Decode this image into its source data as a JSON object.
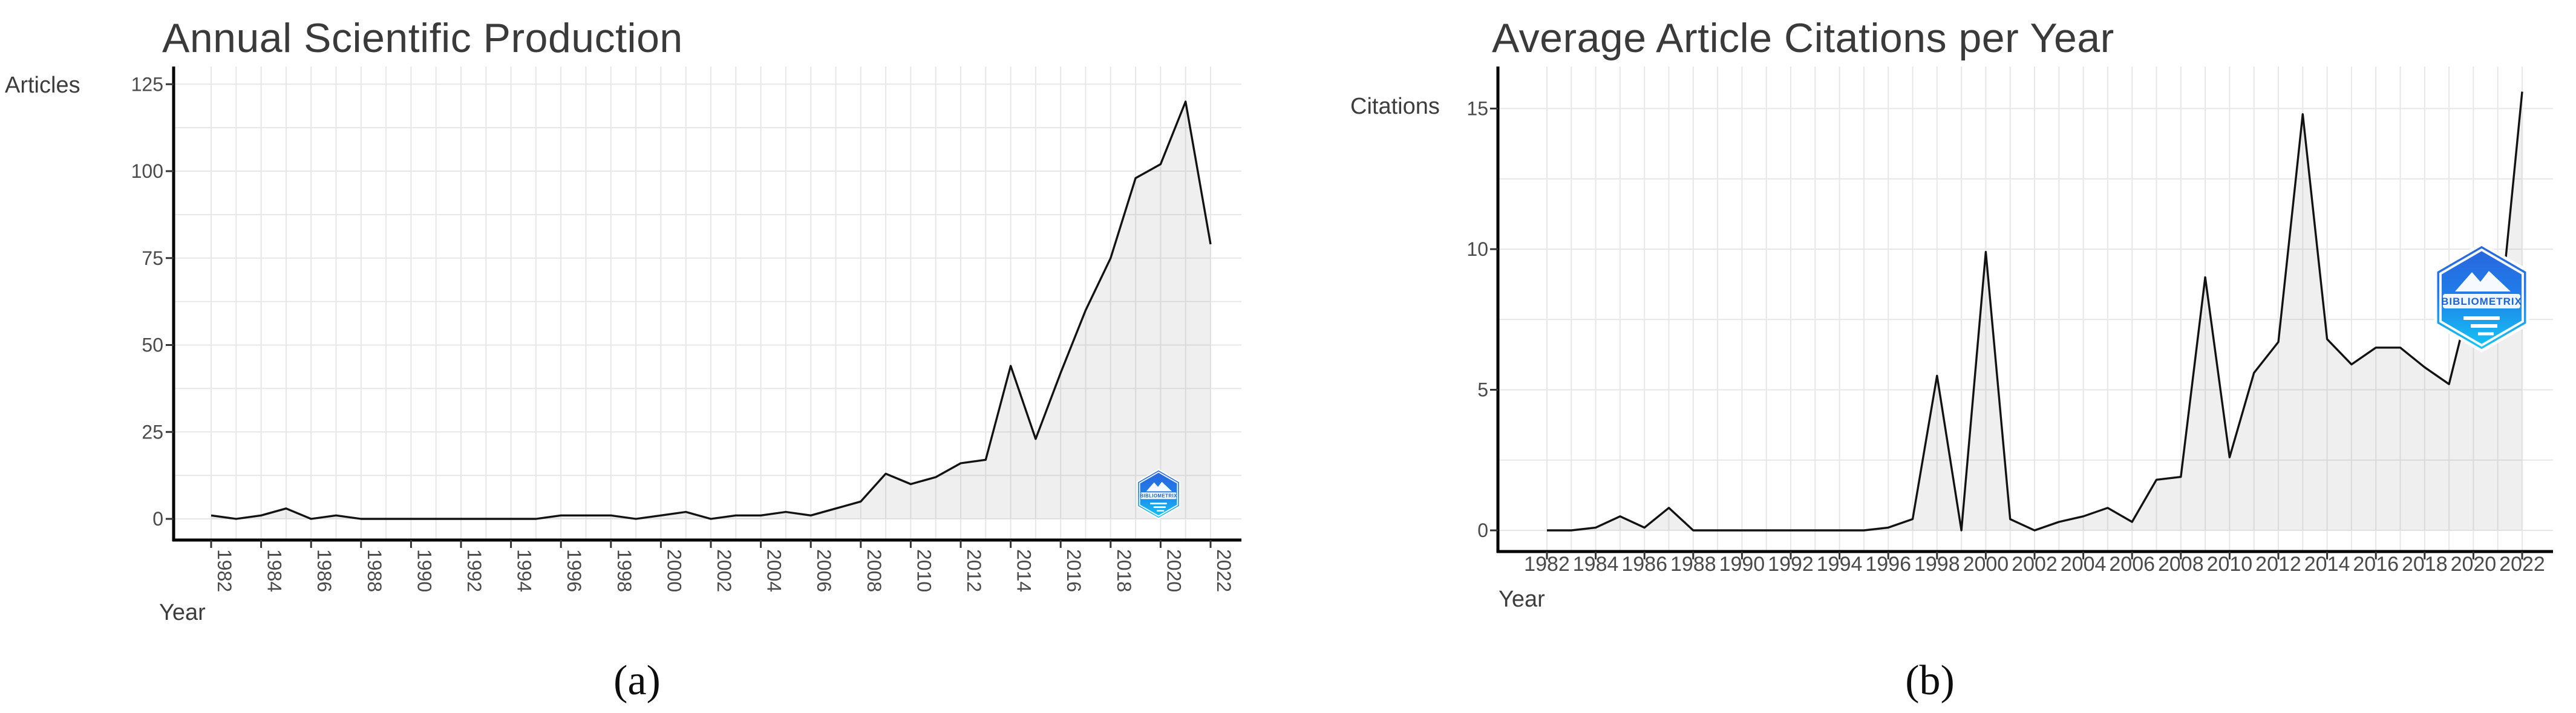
{
  "page": {
    "background": "#ffffff",
    "captions": [
      "(a)",
      "(b)"
    ]
  },
  "logo": {
    "name": "bibliometrix-logo",
    "text": "BIBLIOMETRIX",
    "gradient_top": "#2b63dd",
    "gradient_mid": "#1f7ce8",
    "gradient_bottom": "#15c8f5"
  },
  "colors": {
    "line": "#121212",
    "area_fill": "rgba(140,140,140,0.14)",
    "grid": "#e7e7e7",
    "axis": "#000000",
    "tick_text": "#4a4a4a",
    "title_text": "#3a3a3a"
  },
  "chart_data": [
    {
      "type": "area",
      "title": "Annual Scientific Production",
      "xlabel": "Year",
      "ylabel": "Articles",
      "x": [
        1982,
        1983,
        1984,
        1985,
        1986,
        1987,
        1988,
        1989,
        1990,
        1991,
        1992,
        1993,
        1994,
        1995,
        1996,
        1997,
        1998,
        1999,
        2000,
        2001,
        2002,
        2003,
        2004,
        2005,
        2006,
        2007,
        2008,
        2009,
        2010,
        2011,
        2012,
        2013,
        2014,
        2015,
        2016,
        2017,
        2018,
        2019,
        2020,
        2021,
        2022
      ],
      "values": [
        1,
        0,
        1,
        3,
        0,
        1,
        0,
        0,
        0,
        0,
        0,
        0,
        0,
        0,
        1,
        1,
        1,
        0,
        1,
        2,
        0,
        1,
        1,
        2,
        1,
        3,
        5,
        13,
        10,
        12,
        16,
        17,
        44,
        23,
        42,
        60,
        75,
        98,
        102,
        120,
        79
      ],
      "x_tick_years": [
        1982,
        1984,
        1986,
        1988,
        1990,
        1992,
        1994,
        1996,
        1998,
        2000,
        2002,
        2004,
        2006,
        2008,
        2010,
        2012,
        2014,
        2016,
        2018,
        2020,
        2022
      ],
      "y_ticks": [
        0,
        25,
        50,
        75,
        100,
        125
      ],
      "y_grid_step": 12.5,
      "ylim": [
        0,
        125
      ],
      "grid": true,
      "legend": "none",
      "x_labels_rotated": true
    },
    {
      "type": "area",
      "title": "Average Article Citations per Year",
      "xlabel": "Year",
      "ylabel": "Citations",
      "x": [
        1982,
        1983,
        1984,
        1985,
        1986,
        1987,
        1988,
        1989,
        1990,
        1991,
        1992,
        1993,
        1994,
        1995,
        1996,
        1997,
        1998,
        1999,
        2000,
        2001,
        2002,
        2003,
        2004,
        2005,
        2006,
        2007,
        2008,
        2009,
        2010,
        2011,
        2012,
        2013,
        2014,
        2015,
        2016,
        2017,
        2018,
        2019,
        2020,
        2021,
        2022
      ],
      "values": [
        0,
        0,
        0.1,
        0.5,
        0.1,
        0.8,
        0,
        0,
        0,
        0,
        0,
        0,
        0,
        0,
        0.1,
        0.4,
        5.5,
        0,
        9.9,
        0.4,
        0,
        0.3,
        0.5,
        0.8,
        0.3,
        1.8,
        1.9,
        9.0,
        2.6,
        5.6,
        6.7,
        14.8,
        6.8,
        5.9,
        6.5,
        6.5,
        5.8,
        5.2,
        8.7,
        6.8,
        15.6
      ],
      "x_tick_years": [
        1982,
        1984,
        1986,
        1988,
        1990,
        1992,
        1994,
        1996,
        1998,
        2000,
        2002,
        2004,
        2006,
        2008,
        2010,
        2012,
        2014,
        2016,
        2018,
        2020,
        2022
      ],
      "y_ticks": [
        0,
        5,
        10,
        15
      ],
      "y_grid_step": 2.5,
      "ylim": [
        0,
        15.5
      ],
      "grid": true,
      "legend": "none",
      "x_labels_rotated": false
    }
  ]
}
